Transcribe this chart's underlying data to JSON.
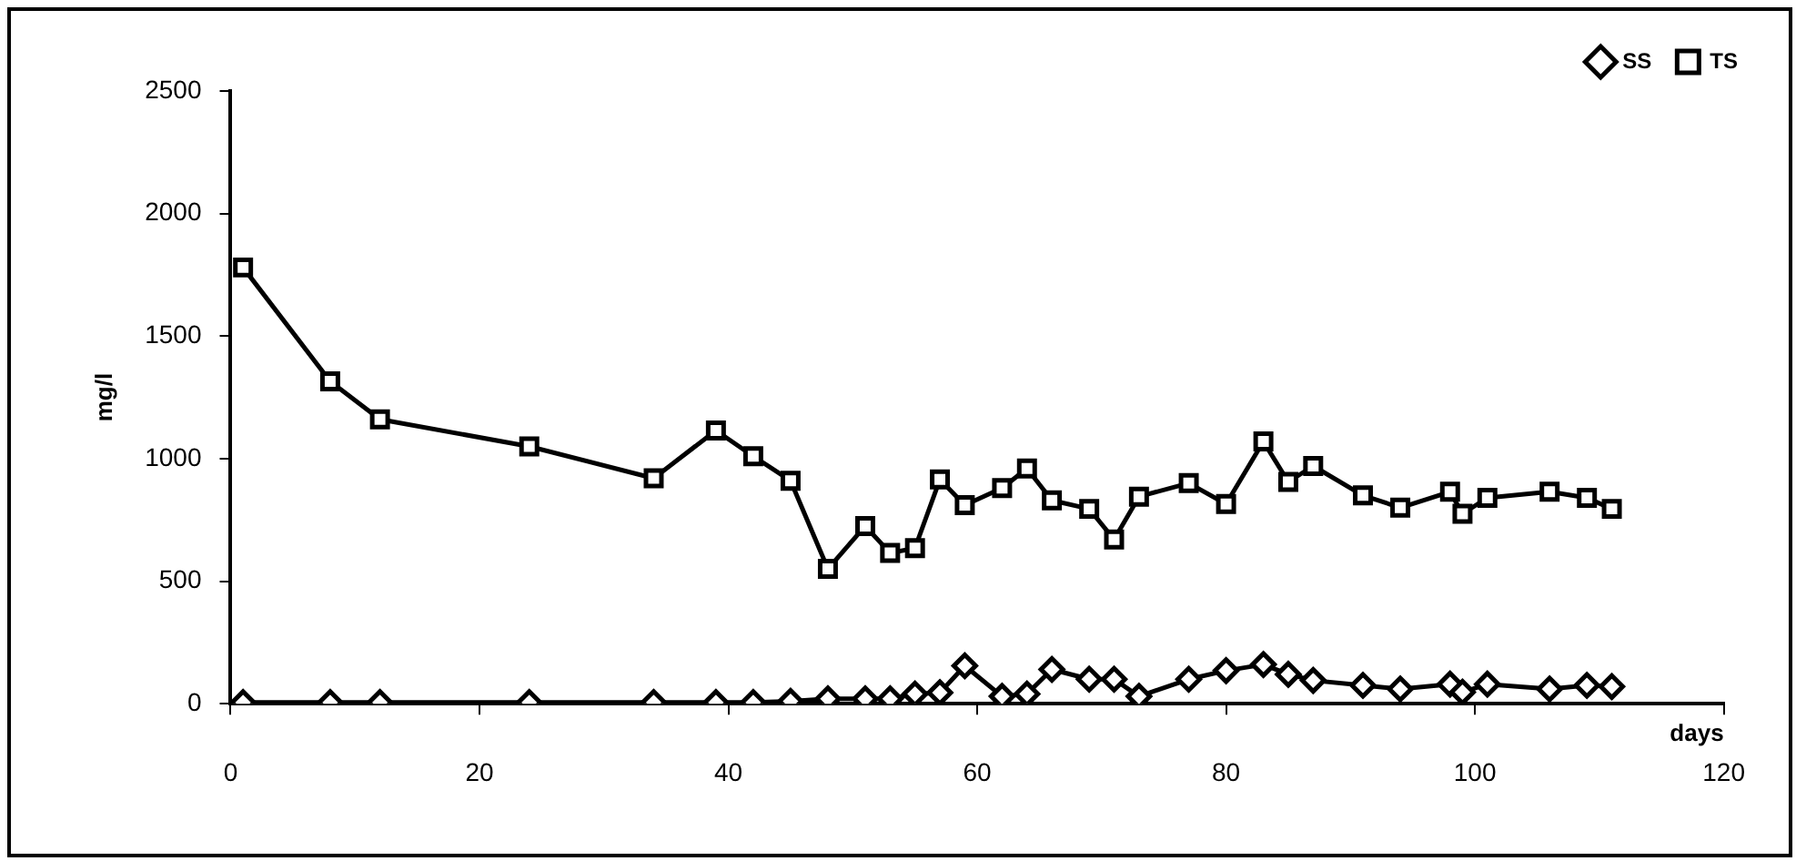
{
  "chart_data": {
    "type": "line",
    "xlabel": "days",
    "ylabel": "mg/l",
    "x": [
      1,
      8,
      12,
      24,
      34,
      39,
      42,
      45,
      48,
      51,
      53,
      55,
      57,
      59,
      62,
      64,
      66,
      69,
      71,
      73,
      77,
      80,
      83,
      85,
      87,
      91,
      94,
      98,
      99,
      101,
      106,
      109,
      111
    ],
    "series": [
      {
        "name": "SS",
        "color": "#000000",
        "marker": "diamond",
        "values": [
          5,
          5,
          5,
          5,
          5,
          5,
          5,
          10,
          20,
          20,
          20,
          40,
          45,
          155,
          30,
          40,
          140,
          100,
          100,
          30,
          100,
          135,
          160,
          120,
          95,
          75,
          60,
          80,
          47,
          80,
          60,
          75,
          70
        ]
      },
      {
        "name": "TS",
        "color": "#000000",
        "marker": "square",
        "values": [
          1780,
          1315,
          1160,
          1050,
          920,
          1115,
          1010,
          910,
          550,
          725,
          615,
          635,
          915,
          810,
          880,
          960,
          830,
          795,
          670,
          845,
          900,
          815,
          1070,
          905,
          970,
          850,
          800,
          865,
          775,
          840,
          865,
          840,
          795
        ]
      }
    ],
    "xlim": [
      0,
      120
    ],
    "xticks": [
      0,
      20,
      40,
      60,
      80,
      100,
      120
    ],
    "ylim": [
      0,
      2500
    ],
    "yticks": [
      0,
      500,
      1000,
      1500,
      2000,
      2500
    ],
    "grid": false,
    "legend": "top right",
    "line_style": "solid"
  }
}
